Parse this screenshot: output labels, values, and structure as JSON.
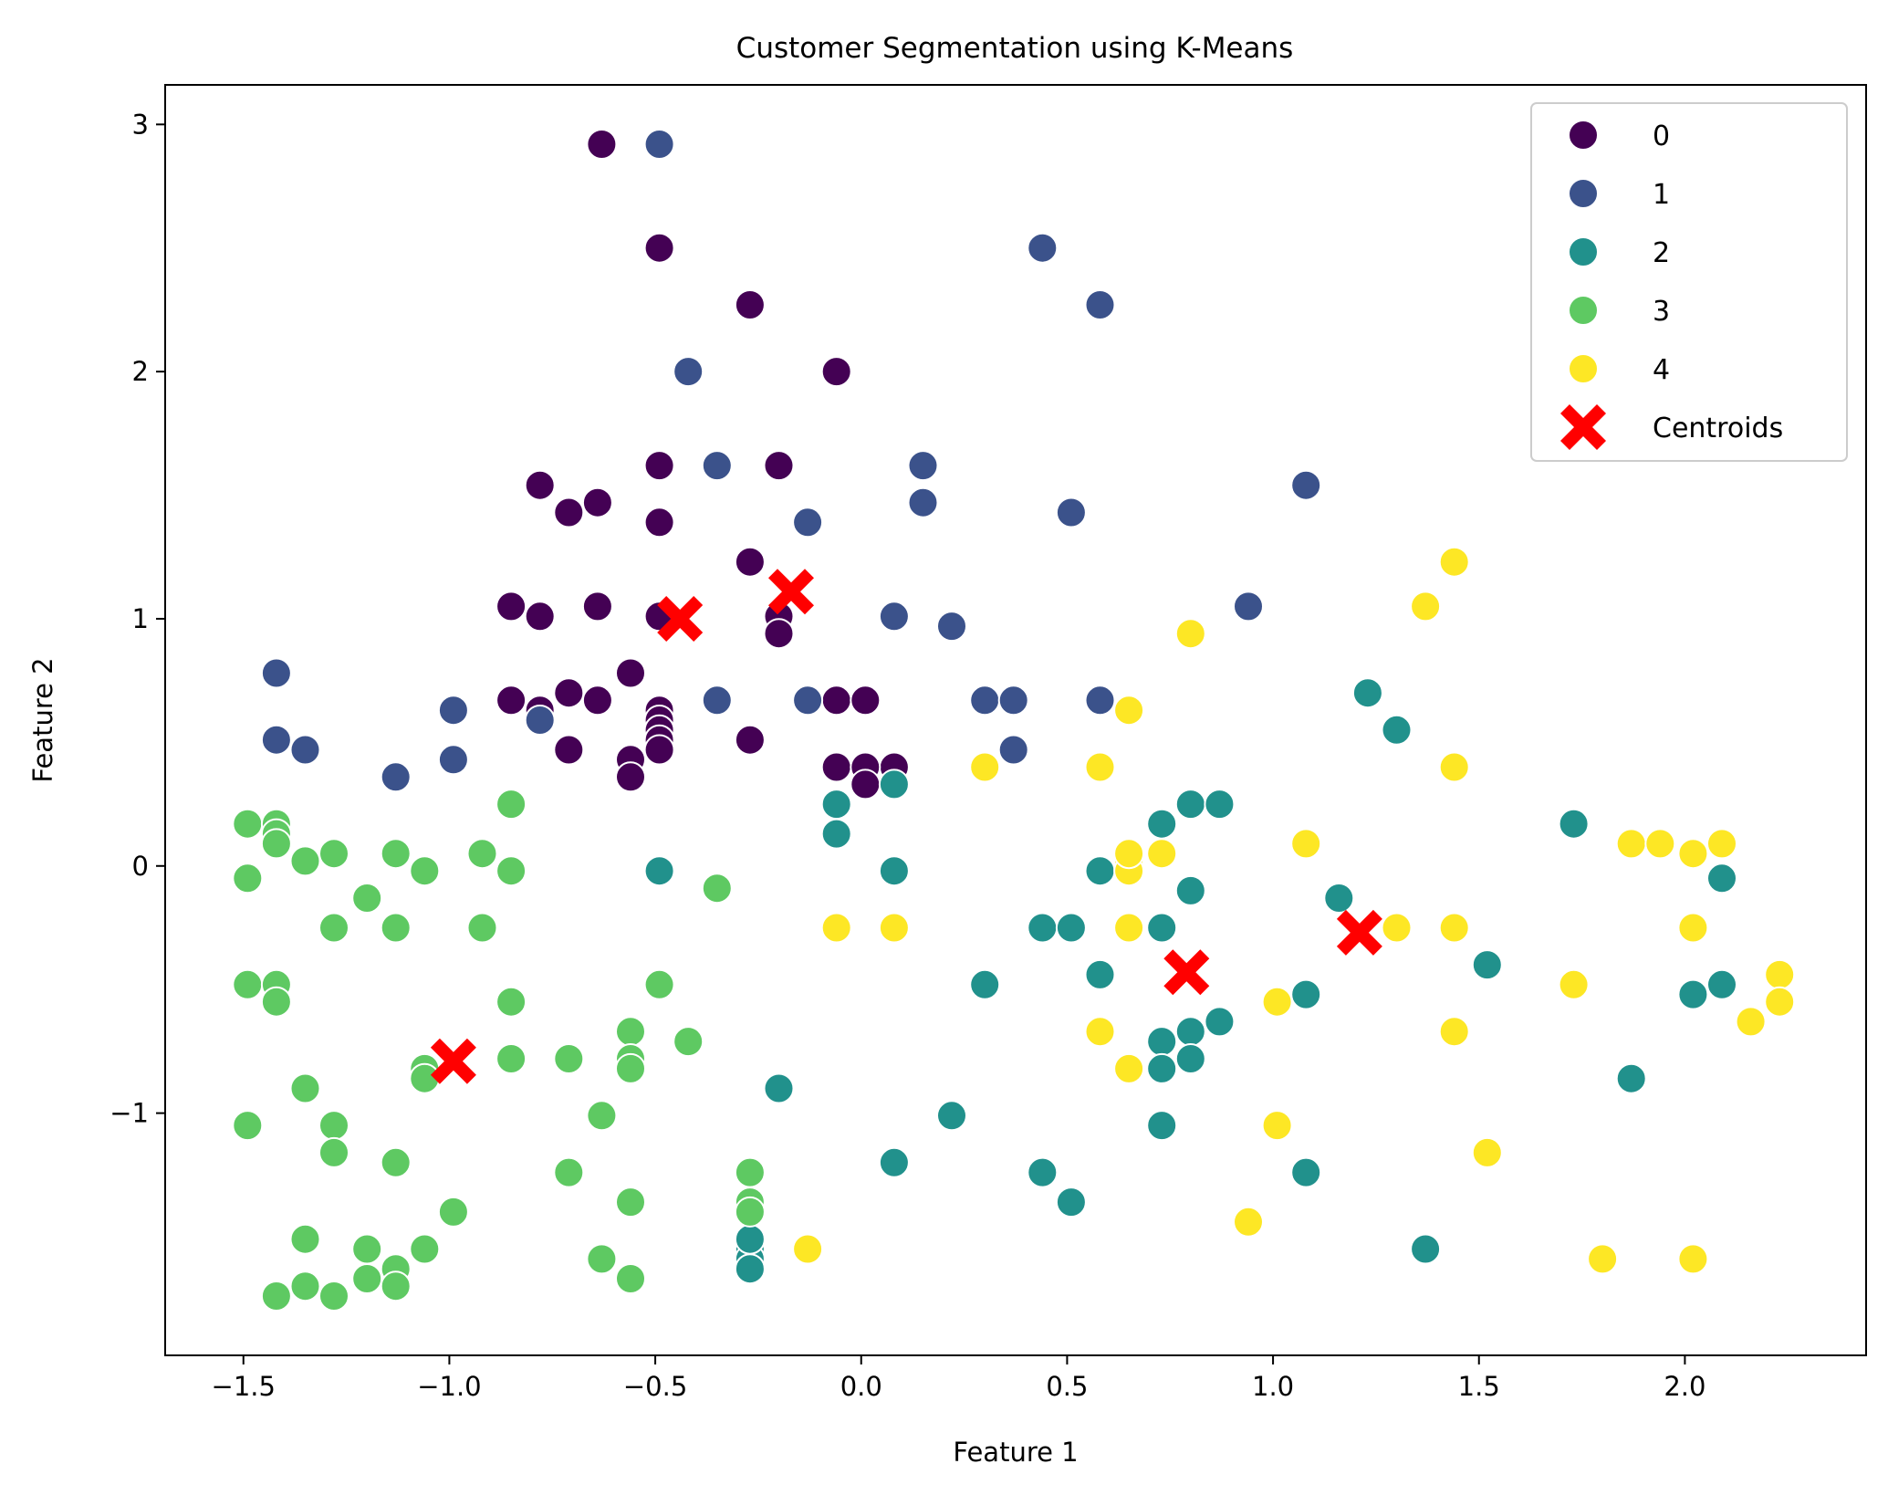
{
  "chart_data": {
    "type": "scatter",
    "title": "Customer Segmentation using K-Means",
    "xlabel": "Feature 1",
    "ylabel": "Feature 2",
    "xlim": [
      -1.69,
      2.44
    ],
    "ylim": [
      -1.98,
      3.16
    ],
    "xticks": [
      {
        "value": -1.5,
        "label": "−1.5"
      },
      {
        "value": -1.0,
        "label": "−1.0"
      },
      {
        "value": -0.5,
        "label": "−0.5"
      },
      {
        "value": 0.0,
        "label": "0.0"
      },
      {
        "value": 0.5,
        "label": "0.5"
      },
      {
        "value": 1.0,
        "label": "1.0"
      },
      {
        "value": 1.5,
        "label": "1.5"
      },
      {
        "value": 2.0,
        "label": "2.0"
      }
    ],
    "yticks": [
      {
        "value": -1,
        "label": "−1"
      },
      {
        "value": 0,
        "label": "0"
      },
      {
        "value": 1,
        "label": "1"
      },
      {
        "value": 2,
        "label": "2"
      },
      {
        "value": 3,
        "label": "3"
      }
    ],
    "grid": false,
    "legend_position": "top-right",
    "series": [
      {
        "name": "0",
        "color": "#440154",
        "points": [
          [
            -0.63,
            2.92
          ],
          [
            -0.49,
            2.5
          ],
          [
            -0.27,
            2.27
          ],
          [
            -0.06,
            2.0
          ],
          [
            -0.49,
            1.62
          ],
          [
            -0.2,
            1.62
          ],
          [
            -0.78,
            1.54
          ],
          [
            -0.64,
            1.47
          ],
          [
            -0.71,
            1.43
          ],
          [
            -0.49,
            1.39
          ],
          [
            -0.27,
            1.23
          ],
          [
            -0.85,
            1.05
          ],
          [
            -0.64,
            1.05
          ],
          [
            -0.78,
            1.01
          ],
          [
            -0.49,
            1.01
          ],
          [
            -0.2,
            1.01
          ],
          [
            -0.2,
            0.94
          ],
          [
            -0.56,
            0.78
          ],
          [
            -0.71,
            0.7
          ],
          [
            -0.85,
            0.67
          ],
          [
            -0.64,
            0.67
          ],
          [
            -0.06,
            0.67
          ],
          [
            0.01,
            0.67
          ],
          [
            -0.49,
            0.63
          ],
          [
            -0.78,
            0.63
          ],
          [
            -0.49,
            0.59
          ],
          [
            -0.49,
            0.55
          ],
          [
            -0.27,
            0.51
          ],
          [
            -0.49,
            0.51
          ],
          [
            -0.71,
            0.47
          ],
          [
            -0.49,
            0.47
          ],
          [
            -0.56,
            0.43
          ],
          [
            -0.56,
            0.36
          ],
          [
            -0.06,
            0.4
          ],
          [
            0.08,
            0.4
          ],
          [
            0.01,
            0.4
          ],
          [
            0.01,
            0.33
          ]
        ]
      },
      {
        "name": "1",
        "color": "#3b528b",
        "points": [
          [
            -0.49,
            2.92
          ],
          [
            0.44,
            2.5
          ],
          [
            0.58,
            2.27
          ],
          [
            -0.42,
            2.0
          ],
          [
            -0.35,
            1.62
          ],
          [
            0.15,
            1.62
          ],
          [
            1.08,
            1.54
          ],
          [
            0.15,
            1.47
          ],
          [
            0.51,
            1.43
          ],
          [
            -0.13,
            1.39
          ],
          [
            0.94,
            1.05
          ],
          [
            0.08,
            1.01
          ],
          [
            0.22,
            0.97
          ],
          [
            -1.42,
            0.78
          ],
          [
            -0.35,
            0.67
          ],
          [
            -0.13,
            0.67
          ],
          [
            0.3,
            0.67
          ],
          [
            0.37,
            0.67
          ],
          [
            0.58,
            0.67
          ],
          [
            -0.99,
            0.63
          ],
          [
            -0.78,
            0.59
          ],
          [
            -1.42,
            0.51
          ],
          [
            -1.35,
            0.47
          ],
          [
            0.37,
            0.47
          ],
          [
            -0.99,
            0.43
          ],
          [
            -1.13,
            0.36
          ]
        ]
      },
      {
        "name": "2",
        "color": "#21918c",
        "points": [
          [
            1.23,
            0.7
          ],
          [
            1.3,
            0.55
          ],
          [
            0.08,
            0.33
          ],
          [
            0.8,
            0.25
          ],
          [
            0.87,
            0.25
          ],
          [
            -0.06,
            0.25
          ],
          [
            0.73,
            0.17
          ],
          [
            1.73,
            0.17
          ],
          [
            -0.06,
            0.13
          ],
          [
            -0.49,
            -0.02
          ],
          [
            0.08,
            -0.02
          ],
          [
            0.58,
            -0.02
          ],
          [
            2.09,
            -0.05
          ],
          [
            0.8,
            -0.1
          ],
          [
            1.16,
            -0.13
          ],
          [
            0.44,
            -0.25
          ],
          [
            0.51,
            -0.25
          ],
          [
            0.73,
            -0.25
          ],
          [
            1.52,
            -0.4
          ],
          [
            0.58,
            -0.44
          ],
          [
            0.3,
            -0.48
          ],
          [
            2.09,
            -0.48
          ],
          [
            1.08,
            -0.52
          ],
          [
            2.02,
            -0.52
          ],
          [
            0.87,
            -0.63
          ],
          [
            0.8,
            -0.67
          ],
          [
            0.73,
            -0.71
          ],
          [
            0.8,
            -0.78
          ],
          [
            0.73,
            -0.82
          ],
          [
            1.87,
            -0.86
          ],
          [
            -0.2,
            -0.9
          ],
          [
            0.22,
            -1.01
          ],
          [
            0.73,
            -1.05
          ],
          [
            0.08,
            -1.2
          ],
          [
            0.44,
            -1.24
          ],
          [
            1.08,
            -1.24
          ],
          [
            0.51,
            -1.36
          ],
          [
            1.37,
            -1.55
          ],
          [
            -0.27,
            -1.55
          ],
          [
            -0.27,
            -1.59
          ],
          [
            -0.27,
            -1.63
          ],
          [
            -0.27,
            -1.51
          ]
        ]
      },
      {
        "name": "3",
        "color": "#5ec962",
        "points": [
          [
            -0.85,
            0.25
          ],
          [
            -1.49,
            0.17
          ],
          [
            -1.42,
            0.17
          ],
          [
            -1.42,
            0.13
          ],
          [
            -1.42,
            0.09
          ],
          [
            -1.28,
            0.05
          ],
          [
            -1.13,
            0.05
          ],
          [
            -0.92,
            0.05
          ],
          [
            -1.35,
            0.02
          ],
          [
            -1.06,
            -0.02
          ],
          [
            -0.85,
            -0.02
          ],
          [
            -1.49,
            -0.05
          ],
          [
            -0.35,
            -0.09
          ],
          [
            -1.2,
            -0.13
          ],
          [
            -1.28,
            -0.25
          ],
          [
            -1.13,
            -0.25
          ],
          [
            -0.92,
            -0.25
          ],
          [
            -1.49,
            -0.48
          ],
          [
            -1.42,
            -0.48
          ],
          [
            -0.49,
            -0.48
          ],
          [
            -1.42,
            -0.55
          ],
          [
            -0.85,
            -0.55
          ],
          [
            -0.56,
            -0.67
          ],
          [
            -0.42,
            -0.71
          ],
          [
            -0.71,
            -0.78
          ],
          [
            -0.85,
            -0.78
          ],
          [
            -0.56,
            -0.78
          ],
          [
            -0.56,
            -0.82
          ],
          [
            -1.06,
            -0.82
          ],
          [
            -1.06,
            -0.86
          ],
          [
            -1.35,
            -0.9
          ],
          [
            -0.63,
            -1.01
          ],
          [
            -1.49,
            -1.05
          ],
          [
            -1.28,
            -1.05
          ],
          [
            -1.28,
            -1.16
          ],
          [
            -1.13,
            -1.2
          ],
          [
            -0.71,
            -1.24
          ],
          [
            -0.27,
            -1.24
          ],
          [
            -0.56,
            -1.36
          ],
          [
            -0.27,
            -1.36
          ],
          [
            -0.99,
            -1.4
          ],
          [
            -0.27,
            -1.4
          ],
          [
            -1.35,
            -1.51
          ],
          [
            -1.2,
            -1.55
          ],
          [
            -1.06,
            -1.55
          ],
          [
            -0.63,
            -1.59
          ],
          [
            -1.13,
            -1.63
          ],
          [
            -1.2,
            -1.67
          ],
          [
            -0.56,
            -1.67
          ],
          [
            -1.13,
            -1.7
          ],
          [
            -1.35,
            -1.7
          ],
          [
            -1.42,
            -1.74
          ],
          [
            -1.28,
            -1.74
          ]
        ]
      },
      {
        "name": "4",
        "color": "#fde725",
        "points": [
          [
            1.44,
            1.23
          ],
          [
            1.37,
            1.05
          ],
          [
            0.8,
            0.94
          ],
          [
            0.65,
            0.63
          ],
          [
            1.44,
            0.4
          ],
          [
            0.3,
            0.4
          ],
          [
            0.58,
            0.4
          ],
          [
            1.08,
            0.09
          ],
          [
            1.87,
            0.09
          ],
          [
            1.94,
            0.09
          ],
          [
            2.09,
            0.09
          ],
          [
            2.02,
            0.05
          ],
          [
            0.65,
            0.02
          ],
          [
            0.65,
            -0.02
          ],
          [
            0.65,
            0.05
          ],
          [
            0.73,
            0.05
          ],
          [
            -0.06,
            -0.25
          ],
          [
            0.08,
            -0.25
          ],
          [
            0.65,
            -0.25
          ],
          [
            1.3,
            -0.25
          ],
          [
            1.44,
            -0.25
          ],
          [
            2.02,
            -0.25
          ],
          [
            2.23,
            -0.44
          ],
          [
            1.73,
            -0.48
          ],
          [
            1.01,
            -0.55
          ],
          [
            2.23,
            -0.55
          ],
          [
            2.16,
            -0.63
          ],
          [
            0.58,
            -0.67
          ],
          [
            1.44,
            -0.67
          ],
          [
            0.65,
            -0.82
          ],
          [
            1.01,
            -1.05
          ],
          [
            1.52,
            -1.16
          ],
          [
            0.94,
            -1.44
          ],
          [
            -0.13,
            -1.55
          ],
          [
            1.8,
            -1.59
          ],
          [
            2.02,
            -1.59
          ]
        ]
      }
    ],
    "centroids": {
      "name": "Centroids",
      "color": "#ff0000",
      "marker": "X",
      "points": [
        [
          -0.44,
          1.0
        ],
        [
          -0.17,
          1.11
        ],
        [
          0.79,
          -0.43
        ],
        [
          1.21,
          -0.27
        ],
        [
          -0.99,
          -0.79
        ]
      ]
    }
  }
}
